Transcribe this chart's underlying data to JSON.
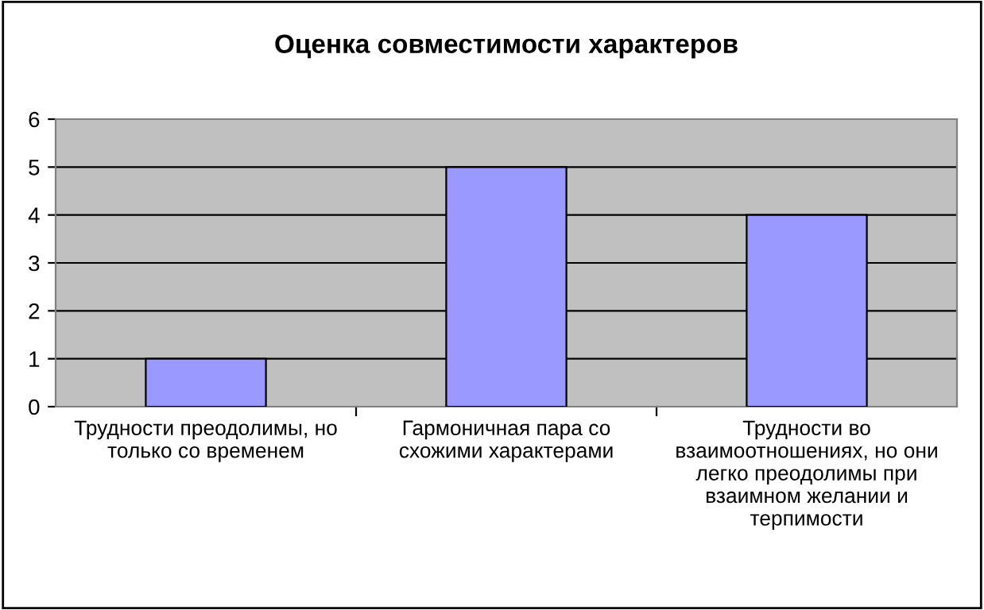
{
  "chart_data": {
    "type": "bar",
    "title": "Оценка совместимости характеров",
    "categories": [
      "Трудности преодолимы, но\nтолько со временем",
      "Гармоничная пара со\nсхожими характерами",
      "Трудности во\nвзаимоотношениях, но они\nлегко преодолимы при\nвзаимном желании и\nтерпимости"
    ],
    "values": [
      1,
      5,
      4
    ],
    "color": "#9999ff",
    "ylim": [
      0,
      6
    ],
    "yticks": [
      0,
      1,
      2,
      3,
      4,
      5,
      6
    ],
    "grid": "y",
    "legend": false
  }
}
